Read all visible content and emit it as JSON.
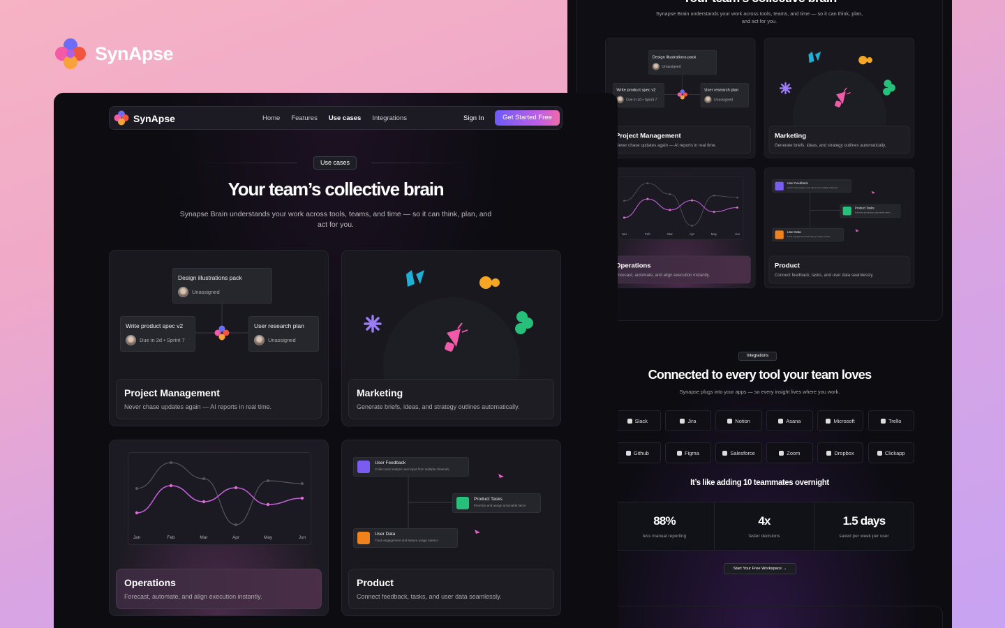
{
  "brand": "SynApse",
  "nav": {
    "links": [
      "Home",
      "Features",
      "Use cases",
      "Integrations"
    ],
    "sign_in": "Sign In",
    "cta": "Get Started Free"
  },
  "hero": {
    "badge": "Use cases",
    "title": "Your team’s collective brain",
    "subtitle": "Synapse Brain understands your work across tools, teams, and time — so it can think, plan, and act for you."
  },
  "cards": [
    {
      "title": "Project Management",
      "description": "Never chase updates again — AI reports in real time."
    },
    {
      "title": "Marketing",
      "description": "Generate briefs, ideas, and strategy outlines automatically."
    },
    {
      "title": "Operations",
      "description": "Forecast, automate, and align execution instantly."
    },
    {
      "title": "Product",
      "description": "Connect feedback, tasks, and user data seamlessly."
    }
  ],
  "project_tasks": [
    {
      "title": "Design illustrations pack",
      "meta": "Unassigned"
    },
    {
      "title": "Write product spec v2",
      "meta": "Due in 2d • Sprint 7"
    },
    {
      "title": "User research plan",
      "meta": "Unassigned"
    }
  ],
  "chart_months": [
    "Jan",
    "Feb",
    "Mar",
    "Apr",
    "May",
    "Jun"
  ],
  "product_flow": [
    {
      "title": "User Feedback",
      "description": "Collect and analyze user input from multiple channels"
    },
    {
      "title": "Product Tasks",
      "description": "Prioritize and assign actionable items"
    },
    {
      "title": "User Data",
      "description": "Track engagement and feature usage metrics"
    }
  ],
  "integrations": {
    "badge": "Integrations",
    "title": "Connected to every tool your team loves",
    "subtitle": "Synapse plugs into your apps — so every insight lives where you work.",
    "tools": [
      "Slack",
      "Jira",
      "Notion",
      "Asana",
      "Microsoft",
      "Trello",
      "Github",
      "Figma",
      "Salesforce",
      "Zoom",
      "Dropbox",
      "Clickapp"
    ]
  },
  "stats": {
    "heading": "It’s like adding 10 teammates overnight",
    "items": [
      {
        "value": "88%",
        "label": "less manual reporting"
      },
      {
        "value": "4x",
        "label": "faster decisions"
      },
      {
        "value": "1.5 days",
        "label": "saved per week per user"
      }
    ]
  },
  "workspace_cta": "Start Your Free Workspace"
}
